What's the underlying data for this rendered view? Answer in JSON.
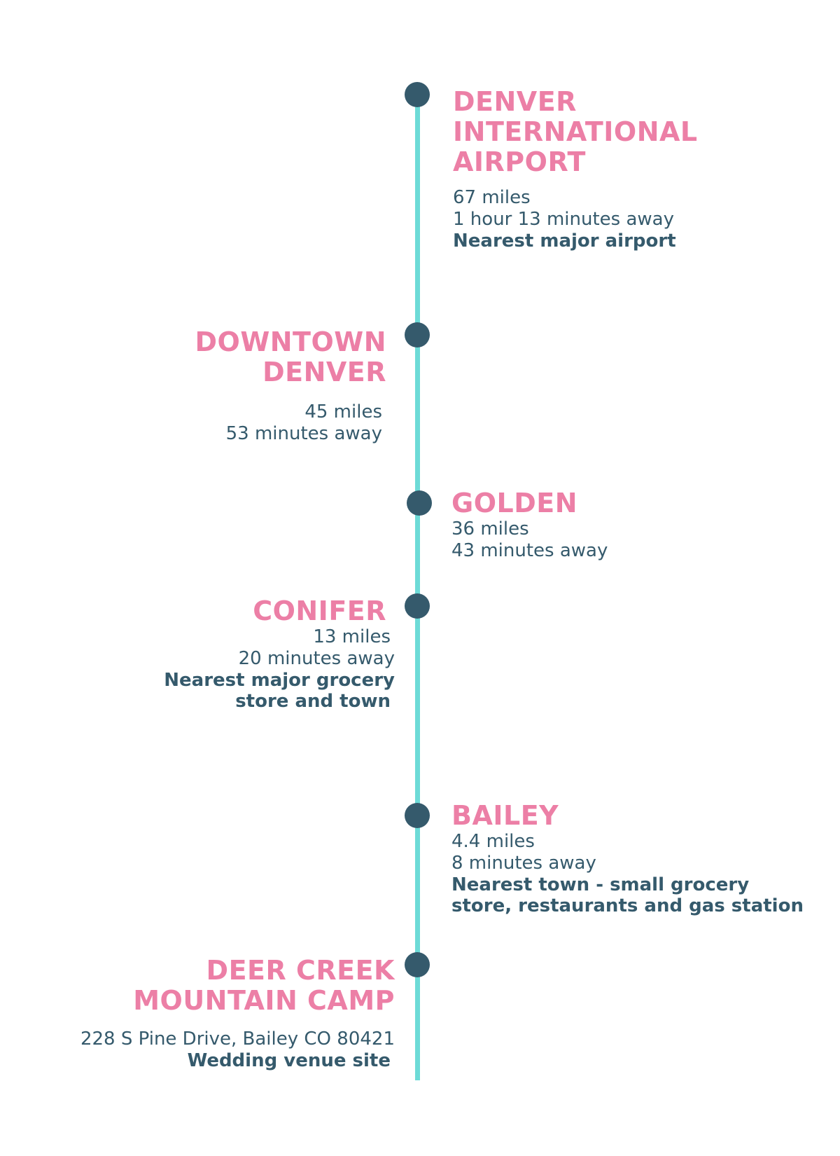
{
  "stops": [
    {
      "title_lines": [
        "DENVER",
        "INTERNATIONAL",
        "AIRPORT"
      ],
      "distance": "67 miles",
      "time": "1 hour 13 minutes away",
      "note_lines": [
        "Nearest major airport"
      ]
    },
    {
      "title_lines": [
        "DOWNTOWN",
        "DENVER"
      ],
      "distance": "45 miles",
      "time": "53 minutes away"
    },
    {
      "title_lines": [
        "GOLDEN"
      ],
      "distance": "36 miles",
      "time": "43 minutes away"
    },
    {
      "title_lines": [
        "CONIFER"
      ],
      "distance": "13 miles",
      "time": "20 minutes away",
      "note_lines": [
        "Nearest major grocery",
        "store and town"
      ]
    },
    {
      "title_lines": [
        "BAILEY"
      ],
      "distance": "4.4 miles",
      "time": "8 minutes away",
      "note_lines": [
        "Nearest town - small grocery",
        "store, restaurants and gas station"
      ]
    },
    {
      "title_lines": [
        "DEER CREEK",
        "MOUNTAIN CAMP"
      ],
      "address": "228 S Pine Drive, Bailey CO 80421",
      "note_lines": [
        "Wedding venue site"
      ]
    }
  ],
  "colors": {
    "title": "#ec7fa6",
    "text": "#355a6c",
    "line": "#6ddbd7",
    "dot": "#355a6c"
  }
}
